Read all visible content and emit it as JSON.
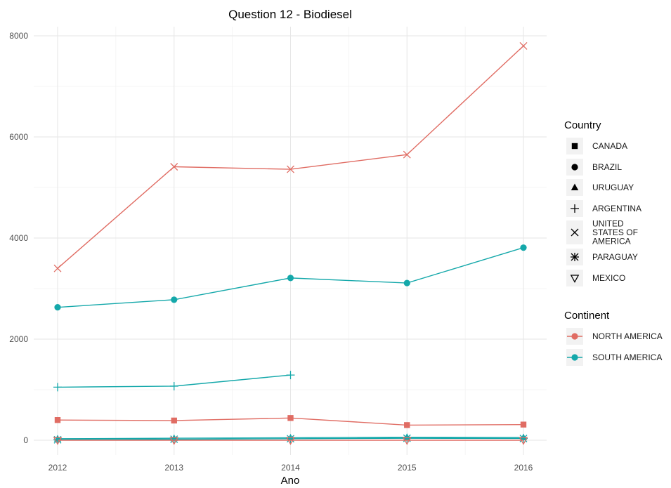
{
  "chart_data": {
    "type": "line",
    "title": "Question 12 - Biodiesel",
    "xlabel": "Ano",
    "ylabel": "",
    "x": [
      2012,
      2013,
      2014,
      2015,
      2016
    ],
    "xlim": [
      2012,
      2016
    ],
    "ylim": [
      -300,
      8200
    ],
    "yticks": [
      0,
      2000,
      4000,
      6000,
      8000
    ],
    "grid": true,
    "legend_position": "right",
    "series": [
      {
        "name": "UNITED STATES OF AMERICA",
        "continent": "NORTH AMERICA",
        "shape": "x",
        "x": [
          2012,
          2013,
          2014,
          2015,
          2016
        ],
        "values": [
          3400,
          5410,
          5360,
          5650,
          7800
        ]
      },
      {
        "name": "BRAZIL",
        "continent": "SOUTH AMERICA",
        "shape": "circle",
        "x": [
          2012,
          2013,
          2014,
          2015,
          2016
        ],
        "values": [
          2630,
          2780,
          3210,
          3110,
          3810
        ]
      },
      {
        "name": "ARGENTINA",
        "continent": "SOUTH AMERICA",
        "shape": "plus",
        "x": [
          2012,
          2013,
          2014
        ],
        "values": [
          1050,
          1070,
          1290
        ]
      },
      {
        "name": "CANADA",
        "continent": "NORTH AMERICA",
        "shape": "square",
        "x": [
          2012,
          2013,
          2014,
          2015,
          2016
        ],
        "values": [
          400,
          390,
          440,
          300,
          310
        ]
      },
      {
        "name": "URUGUAY",
        "continent": "SOUTH AMERICA",
        "shape": "triangle",
        "x": [
          2012,
          2013,
          2014,
          2015,
          2016
        ],
        "values": [
          30,
          40,
          50,
          60,
          55
        ]
      },
      {
        "name": "PARAGUAY",
        "continent": "SOUTH AMERICA",
        "shape": "asterisk",
        "x": [
          2012,
          2013,
          2014,
          2015,
          2016
        ],
        "values": [
          10,
          20,
          30,
          40,
          35
        ]
      },
      {
        "name": "MEXICO",
        "continent": "NORTH AMERICA",
        "shape": "triangle-down",
        "x": [
          2012,
          2013,
          2014,
          2015,
          2016
        ],
        "values": [
          0,
          0,
          0,
          0,
          0
        ]
      }
    ],
    "legend_country": {
      "title": "Country",
      "items": [
        {
          "label": [
            "CANADA"
          ],
          "shape": "square"
        },
        {
          "label": [
            "BRAZIL"
          ],
          "shape": "circle"
        },
        {
          "label": [
            "URUGUAY"
          ],
          "shape": "triangle"
        },
        {
          "label": [
            "ARGENTINA"
          ],
          "shape": "plus"
        },
        {
          "label": [
            "UNITED",
            "STATES OF",
            "AMERICA"
          ],
          "shape": "x"
        },
        {
          "label": [
            "PARAGUAY"
          ],
          "shape": "asterisk"
        },
        {
          "label": [
            "MEXICO"
          ],
          "shape": "triangle-down"
        }
      ]
    },
    "legend_continent": {
      "title": "Continent",
      "items": [
        {
          "label": "NORTH AMERICA",
          "color": "#e06c63"
        },
        {
          "label": "SOUTH AMERICA",
          "color": "#14a8aa"
        }
      ]
    },
    "colors": {
      "NORTH AMERICA": "#e06c63",
      "SOUTH AMERICA": "#14a8aa"
    }
  }
}
